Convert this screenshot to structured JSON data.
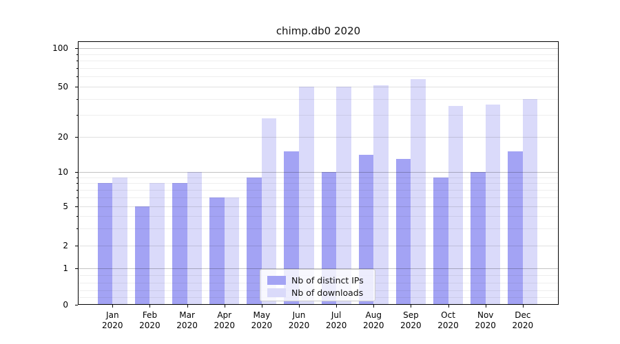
{
  "figure": {
    "title": "chimp.db0 2020"
  },
  "chart_data": {
    "type": "bar",
    "title": "chimp.db0 2020",
    "categories": [
      "Jan",
      "Feb",
      "Mar",
      "Apr",
      "May",
      "Jun",
      "Jul",
      "Aug",
      "Sep",
      "Oct",
      "Nov",
      "Dec"
    ],
    "category_year": "2020",
    "series": [
      {
        "name": "Nb of distinct IPs",
        "color": "#a3a3f4",
        "values": [
          8,
          5,
          8,
          6,
          9,
          15,
          10,
          14,
          13,
          9,
          10,
          15
        ]
      },
      {
        "name": "Nb of downloads",
        "color": "#dadafa",
        "values": [
          9,
          8,
          10,
          6,
          28,
          50,
          50,
          51,
          57,
          35,
          36,
          40
        ]
      }
    ],
    "yscale": "symlog",
    "yticks": [
      0,
      1,
      2,
      5,
      10,
      20,
      50,
      100
    ],
    "ylim": [
      0,
      115
    ],
    "grid": true,
    "legend_position": "lower-center-inside"
  }
}
